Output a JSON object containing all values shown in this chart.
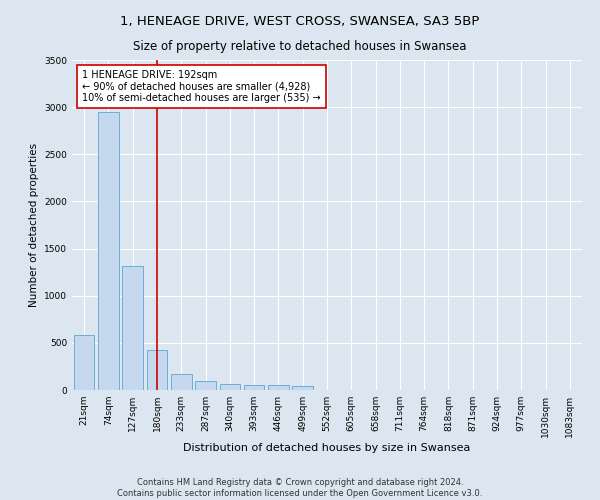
{
  "title1": "1, HENEAGE DRIVE, WEST CROSS, SWANSEA, SA3 5BP",
  "title2": "Size of property relative to detached houses in Swansea",
  "xlabel": "Distribution of detached houses by size in Swansea",
  "ylabel": "Number of detached properties",
  "footer1": "Contains HM Land Registry data © Crown copyright and database right 2024.",
  "footer2": "Contains public sector information licensed under the Open Government Licence v3.0.",
  "categories": [
    "21sqm",
    "74sqm",
    "127sqm",
    "180sqm",
    "233sqm",
    "287sqm",
    "340sqm",
    "393sqm",
    "446sqm",
    "499sqm",
    "552sqm",
    "605sqm",
    "658sqm",
    "711sqm",
    "764sqm",
    "818sqm",
    "871sqm",
    "924sqm",
    "977sqm",
    "1030sqm",
    "1083sqm"
  ],
  "values": [
    580,
    2950,
    1320,
    420,
    165,
    100,
    65,
    55,
    50,
    45,
    0,
    0,
    0,
    0,
    0,
    0,
    0,
    0,
    0,
    0,
    0
  ],
  "bar_color": "#c5d8ed",
  "bar_edge_color": "#6baed6",
  "vline_color": "#cc0000",
  "vline_pos": 3.0,
  "annotation_text": "1 HENEAGE DRIVE: 192sqm\n← 90% of detached houses are smaller (4,928)\n10% of semi-detached houses are larger (535) →",
  "annotation_box_color": "#ffffff",
  "annotation_box_edge": "#cc0000",
  "ylim": [
    0,
    3500
  ],
  "yticks": [
    0,
    500,
    1000,
    1500,
    2000,
    2500,
    3000,
    3500
  ],
  "bg_color": "#dce6f0",
  "plot_bg_color": "#dce6f0",
  "title1_fontsize": 9.5,
  "title2_fontsize": 8.5,
  "xlabel_fontsize": 8,
  "ylabel_fontsize": 7.5,
  "tick_fontsize": 6.5,
  "footer_fontsize": 6,
  "annot_fontsize": 7
}
